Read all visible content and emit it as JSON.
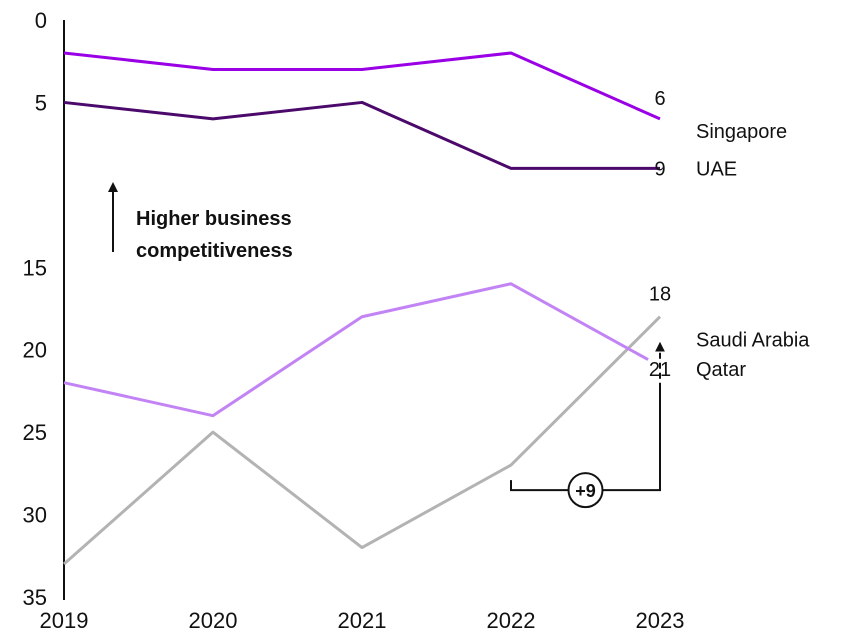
{
  "chart_data": {
    "type": "line",
    "x": [
      "2019",
      "2020",
      "2021",
      "2022",
      "2023"
    ],
    "y_ticks": [
      "0",
      "5",
      "15",
      "20",
      "25",
      "30",
      "35"
    ],
    "ylim": [
      0,
      35
    ],
    "y_inverted": true,
    "grid": false,
    "series": [
      {
        "name": "Singapore",
        "color": "#9a00e6",
        "values": [
          2,
          3,
          3,
          2,
          6
        ],
        "end_label": "6"
      },
      {
        "name": "UAE",
        "color": "#4b0a6b",
        "values": [
          5,
          6,
          5,
          9,
          9
        ],
        "end_label": "9"
      },
      {
        "name": "Saudi Arabia",
        "color": "#b3b3b3",
        "values": [
          33,
          25,
          32,
          27,
          18
        ],
        "end_label": "18"
      },
      {
        "name": "Qatar",
        "color": "#c283f5",
        "values": [
          22,
          24,
          18,
          16,
          21
        ],
        "end_label": "21"
      }
    ],
    "annotation": {
      "lines": [
        "Higher business",
        "competitiveness"
      ]
    },
    "change_badge": {
      "text": "+9",
      "from_x": "2022",
      "from_y": 27,
      "to_x": "2023",
      "to_y": 18
    }
  }
}
